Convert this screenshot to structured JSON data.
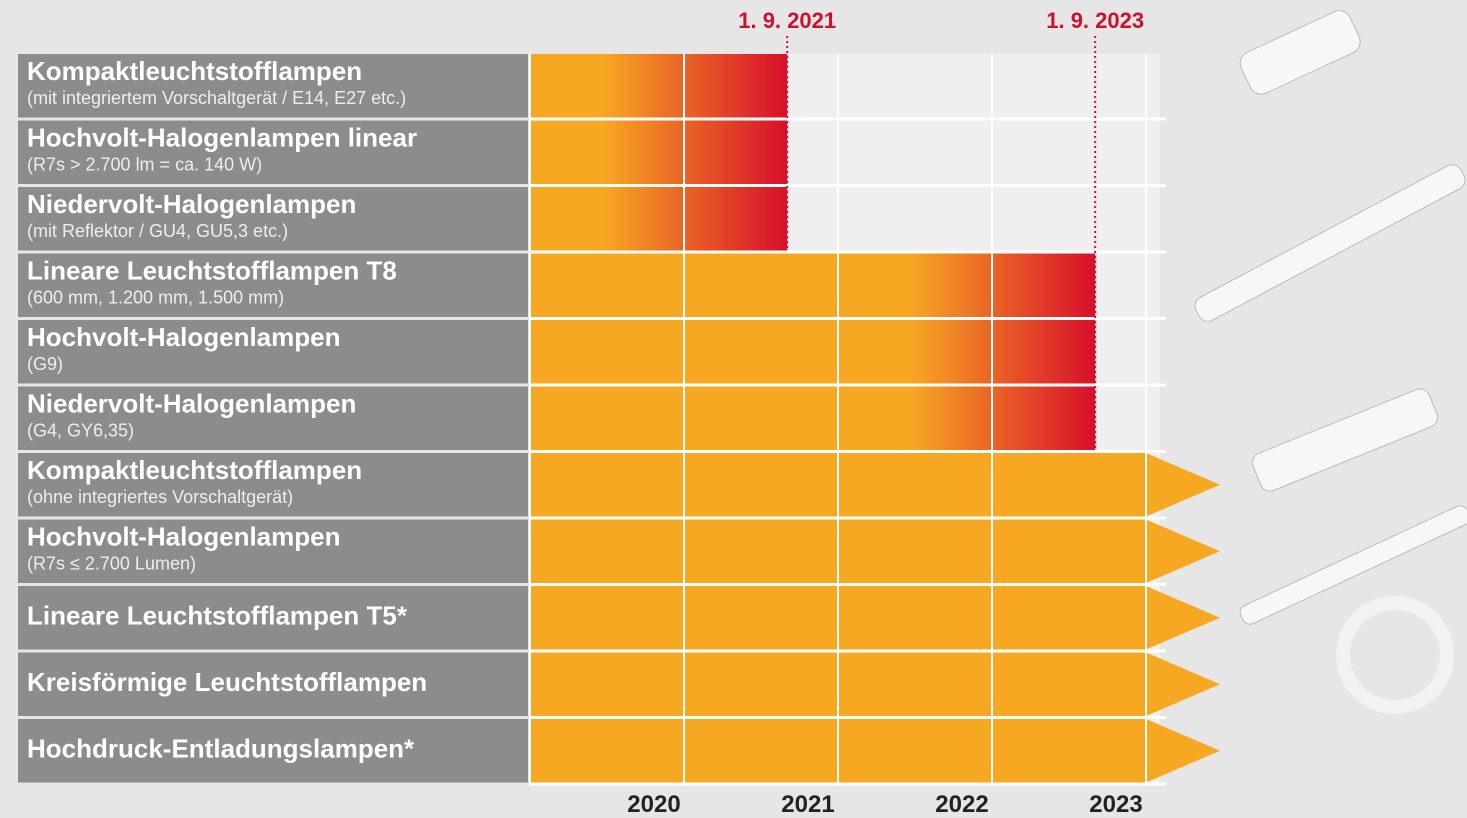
{
  "chart_data": {
    "type": "timeline",
    "categories": [
      "Kompaktleuchtstofflampen",
      "Hochvolt-Halogenlampen linear",
      "Niedervolt-Halogenlampen",
      "Lineare Leuchtstofflampen T8",
      "Hochvolt-Halogenlampen",
      "Niedervolt-Halogenlampen",
      "Kompaktleuchtstofflampen",
      "Hochvolt-Halogenlampen",
      "Lineare Leuchtstofflampen T5*",
      "Kreisförmige Leuchtstofflampen",
      "Hochdruck-Entladungslampen*"
    ],
    "subtitles": [
      "(mit integriertem Vorschaltgerät / E14, E27 etc.)",
      "(R7s > 2.700 lm = ca. 140 W)",
      "(mit Reflektor / GU4, GU5,3 etc.)",
      "(600 mm, 1.200 mm, 1.500 mm)",
      "(G9)",
      "(G4, GY6,35)",
      "(ohne integriertes Vorschaltgerät)",
      "(R7s ≤ 2.700 Lumen)",
      null,
      null,
      null
    ],
    "values": [
      2021.67,
      2021.67,
      2021.67,
      2023.67,
      2023.67,
      2023.67,
      null,
      null,
      null,
      null,
      null
    ],
    "markers": [
      {
        "label": "1. 9. 2021",
        "value": 2021.67
      },
      {
        "label": "1. 9. 2023",
        "value": 2023.67
      }
    ],
    "xlim": [
      2020,
      2024
    ],
    "xticks": [
      2020,
      2021,
      2022,
      2023
    ],
    "color": "#f7a823",
    "end_color": "#d80f2b",
    "label_color": "#8b8c8e"
  }
}
